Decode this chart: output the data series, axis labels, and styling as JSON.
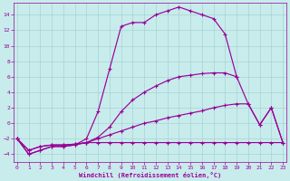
{
  "bg_color": "#c8ecec",
  "grid_color": "#a0cccc",
  "line_color": "#990099",
  "xlabel": "Windchill (Refroidissement éolien,°C)",
  "xlim": [
    -0.3,
    23.3
  ],
  "ylim": [
    -5.0,
    15.5
  ],
  "xticks": [
    0,
    1,
    2,
    3,
    4,
    5,
    6,
    7,
    8,
    9,
    10,
    11,
    12,
    13,
    14,
    15,
    16,
    17,
    18,
    19,
    20,
    21,
    22,
    23
  ],
  "yticks": [
    -4,
    -2,
    0,
    2,
    4,
    6,
    8,
    10,
    12,
    14
  ],
  "x": [
    0,
    1,
    2,
    3,
    4,
    5,
    6,
    7,
    8,
    9,
    10,
    11,
    12,
    13,
    14,
    15,
    16,
    17,
    18,
    19,
    20,
    21,
    22,
    23
  ],
  "line1": [
    -2.0,
    -4.0,
    -3.5,
    -3.0,
    -3.0,
    -2.8,
    -2.0,
    1.5,
    7.0,
    12.5,
    13.0,
    13.0,
    14.0,
    14.5,
    15.0,
    14.5,
    14.0,
    13.5,
    11.5,
    6.0,
    null,
    null,
    null,
    null
  ],
  "line2": [
    -2.0,
    -4.0,
    -3.5,
    -3.0,
    -3.0,
    -2.8,
    -2.5,
    -2.5,
    -2.5,
    -2.5,
    -2.5,
    -2.5,
    -2.5,
    -2.5,
    -2.5,
    -2.5,
    -2.5,
    -2.5,
    -2.5,
    -2.5,
    -2.5,
    -2.5,
    -2.5,
    -2.5
  ],
  "line3": [
    -2.0,
    -3.5,
    -3.0,
    -2.8,
    -2.8,
    -2.7,
    -2.5,
    -2.0,
    -1.5,
    -1.0,
    -0.5,
    0.0,
    0.3,
    0.7,
    1.0,
    1.3,
    1.6,
    2.0,
    2.3,
    2.5,
    2.5,
    -0.2,
    2.0,
    -2.5
  ],
  "line4": [
    -2.0,
    -3.5,
    -3.0,
    -2.8,
    -2.8,
    -2.7,
    -2.5,
    -1.8,
    -0.5,
    1.5,
    3.0,
    4.0,
    4.8,
    5.5,
    6.0,
    6.2,
    6.4,
    6.5,
    6.5,
    6.0,
    2.5,
    -0.2,
    2.0,
    -2.5
  ]
}
